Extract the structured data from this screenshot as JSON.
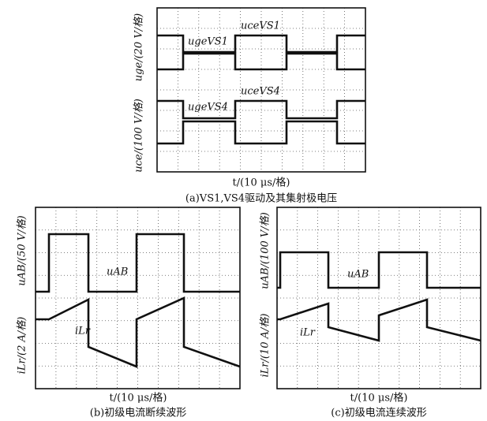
{
  "panels": [
    {
      "y_labels": [
        "uce/(100 V/格)",
        "uge/(20 V/格)"
      ],
      "traces": [
        "uceVS1",
        "ugeVS1",
        "uceVS4",
        "ugeVS4"
      ],
      "x_label": "t/(10 μs/格)",
      "caption": "(a)VS1,VS4驱动及其集射极电压"
    },
    {
      "y_labels": [
        "iLr/(2 A/格)",
        "uAB/(50 V/格)"
      ],
      "traces": [
        "uAB",
        "iLr"
      ],
      "x_label": "t/(10 μs/格)",
      "caption": "(b)初级电流断续波形"
    },
    {
      "y_labels": [
        "iLr/(10 A/格)",
        "uAB/(100 V/格)"
      ],
      "traces": [
        "uAB",
        "iLr"
      ],
      "x_label": "t/(10 μs/格)",
      "caption": "(c)初级电流连续波形"
    }
  ]
}
